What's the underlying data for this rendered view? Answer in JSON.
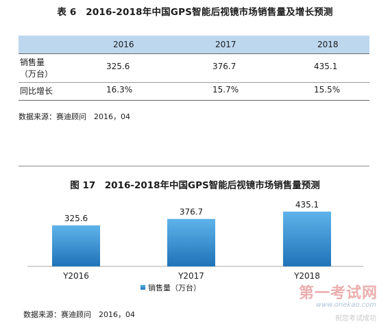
{
  "table_title": "表 6　2016-2018年中国GPS智能后视镜市场销售量及增长预测",
  "table": {
    "headers": [
      "",
      "2016",
      "2017",
      "2018"
    ],
    "rows": [
      {
        "label_line1": "销售量",
        "label_line2": "（万台）",
        "values": [
          "325.6",
          "376.7",
          "435.1"
        ]
      },
      {
        "label_line1": "同比增长",
        "values": [
          "16.3%",
          "15.7%",
          "15.5%"
        ]
      }
    ]
  },
  "source_1": "数据来源：赛迪顾问　2016，04",
  "chart_title": "图 17　2016-2018年中国GPS智能后视镜市场销售量预测",
  "chart_data": {
    "type": "bar",
    "categories": [
      "Y2016",
      "Y2017",
      "Y2018"
    ],
    "series": [
      {
        "name": "销售量（万台）",
        "values": [
          325.6,
          376.7,
          435.1
        ]
      }
    ],
    "data_labels": [
      "325.6",
      "376.7",
      "435.1"
    ],
    "ylim": [
      0,
      500
    ],
    "grid": false,
    "legend": "bottom-center",
    "colors": {
      "bar_top": "#5fb3ea",
      "bar_bottom": "#1f73b8",
      "axis": "#aaaaaa"
    }
  },
  "source_2": "数据来源：赛迪顾问　2016，04",
  "watermark": {
    "line1": "第一考试网",
    "line2": "www.onekao.com",
    "line3": "祝您考试成功"
  }
}
